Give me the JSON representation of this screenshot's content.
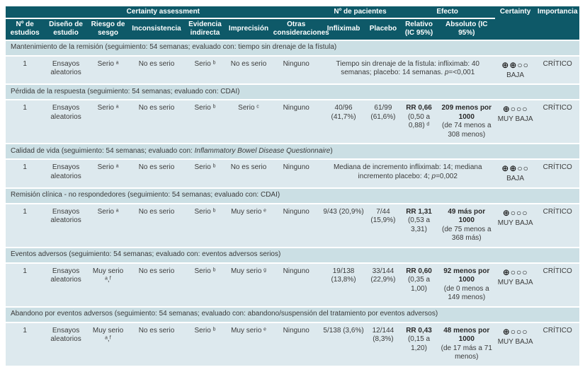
{
  "colors": {
    "header_bg": "#0e5968",
    "section_bg": "#cbdfe4",
    "row_bg": "#dde9ee",
    "header_text": "#ffffff",
    "body_text": "#3b3b3b"
  },
  "header": {
    "group_certainty": "Certainty assessment",
    "group_pacientes": "Nº de pacientes",
    "group_efecto": "Efecto",
    "col_certainty": "Certainty",
    "col_importancia": "Importancia",
    "cols": [
      "Nº de estudios",
      "Diseño de estudio",
      "Riesgo de sesgo",
      "Inconsistencia",
      "Evidencia indirecta",
      "Imprecisión",
      "Otras consideraciones",
      "Infliximab",
      "Placebo",
      "Relativo (IC 95%)",
      "Absoluto (IC 95%)"
    ]
  },
  "sections": [
    {
      "pre": "Mantenimiento de la remisión (seguimiento: 54 semanas; evaluado con: tiempo sin drenaje de la fístula)",
      "italic": "",
      "post": ""
    },
    {
      "pre": "Pérdida de la respuesta (seguimiento: 54 semanas; evaluado con: CDAI)",
      "italic": "",
      "post": ""
    },
    {
      "pre": "Calidad de vida (seguimiento: 54 semanas; evaluado con: ",
      "italic": "Inflammatory Bowel Disease Questionnaire",
      "post": ")"
    },
    {
      "pre": "Remisión clínica - no respondedores (seguimiento: 54 semanas; evaluado con: CDAI)",
      "italic": "",
      "post": ""
    },
    {
      "pre": "Eventos adversos (seguimiento: 54 semanas; evaluado con: eventos adversos serios)",
      "italic": "",
      "post": ""
    },
    {
      "pre": "Abandono por eventos adversos (seguimiento: 54 semanas; evaluado con: abandono/suspensión del tratamiento por eventos adversos)",
      "italic": "",
      "post": ""
    }
  ],
  "rows": [
    {
      "n_estudios": "1",
      "diseno": "Ensayos aleatorios",
      "riesgo": "Serio ᵃ",
      "inconsistencia": "No es serio",
      "indirecta": "Serio ᵇ",
      "imprecision": "No es serio",
      "otras": "Ninguno",
      "resultado": {
        "text": "Tiempo sin drenaje de la fístula: infliximab: 40 semanas; placebo: 14 semanas. ",
        "p": "p",
        "p_value": "=<0,001"
      },
      "certainty": {
        "symbols": "⊕⊕○○",
        "label": "BAJA"
      },
      "importancia": "CRÍTICO"
    },
    {
      "n_estudios": "1",
      "diseno": "Ensayos aleatorios",
      "riesgo": "Serio ᵃ",
      "inconsistencia": "No es serio",
      "indirecta": "Serio ᵇ",
      "imprecision": "Serio ᶜ",
      "otras": "Ninguno",
      "infliximab": "40/96 (41,7%)",
      "placebo": "61/99 (61,6%)",
      "relativo": {
        "value": "RR 0,66",
        "ci": "(0,50 a 0,88) ᵈ"
      },
      "absoluto": {
        "value": "209 menos por 1000",
        "ci": "(de 74 menos a 308 menos)"
      },
      "certainty": {
        "symbols": "⊕○○○",
        "label": "MUY BAJA"
      },
      "importancia": "CRÍTICO"
    },
    {
      "n_estudios": "1",
      "diseno": "Ensayos aleatorios",
      "riesgo": "Serio ᵃ",
      "inconsistencia": "No es serio",
      "indirecta": "Serio ᵇ",
      "imprecision": "No es serio",
      "otras": "Ninguno",
      "resultado": {
        "text": "Mediana de incremento infliximab: 14; mediana incremento placebo: 4; ",
        "p": "p",
        "p_value": "=0,002"
      },
      "certainty": {
        "symbols": "⊕⊕○○",
        "label": "BAJA"
      },
      "importancia": "CRÍTICO"
    },
    {
      "n_estudios": "1",
      "diseno": "Ensayos aleatorios",
      "riesgo": "Serio ᵃ",
      "inconsistencia": "No es serio",
      "indirecta": "Serio ᵇ",
      "imprecision": "Muy serio ᵉ",
      "otras": "Ninguno",
      "infliximab": "9/43 (20,9%)",
      "placebo": "7/44 (15,9%)",
      "relativo": {
        "value": "RR 1,31",
        "ci": "(0,53 a 3,31)"
      },
      "absoluto": {
        "value": "49 más por 1000",
        "ci": "(de 75 menos a 368 más)"
      },
      "certainty": {
        "symbols": "⊕○○○",
        "label": "MUY BAJA"
      },
      "importancia": "CRÍTICO"
    },
    {
      "n_estudios": "1",
      "diseno": "Ensayos aleatorios",
      "riesgo": "Muy serio ᵃ,ᶠ",
      "inconsistencia": "No es serio",
      "indirecta": "Serio ᵇ",
      "imprecision": "Muy serio ᵍ",
      "otras": "Ninguno",
      "infliximab": "19/138 (13,8%)",
      "placebo": "33/144 (22,9%)",
      "relativo": {
        "value": "RR 0,60",
        "ci": "(0,35 a 1,00)"
      },
      "absoluto": {
        "value": "92 menos por 1000",
        "ci": "(de 0 menos a 149 menos)"
      },
      "certainty": {
        "symbols": "⊕○○○",
        "label": "MUY BAJA"
      },
      "importancia": "CRÍTICO"
    },
    {
      "n_estudios": "1",
      "diseno": "Ensayos aleatorios",
      "riesgo": "Muy serio ᵃ,ᶠ",
      "inconsistencia": "No es serio",
      "indirecta": "Serio ᵇ",
      "imprecision": "Muy serio ᵉ",
      "otras": "Ninguno",
      "infliximab": "5/138 (3,6%)",
      "placebo": "12/144 (8,3%)",
      "relativo": {
        "value": "RR 0,43",
        "ci": "(0,15 a 1,20)"
      },
      "absoluto": {
        "value": "48 menos por 1000",
        "ci": "(de 17 más a 71 menos)"
      },
      "certainty": {
        "symbols": "⊕○○○",
        "label": "MUY BAJA"
      },
      "importancia": "CRÍTICO"
    }
  ]
}
